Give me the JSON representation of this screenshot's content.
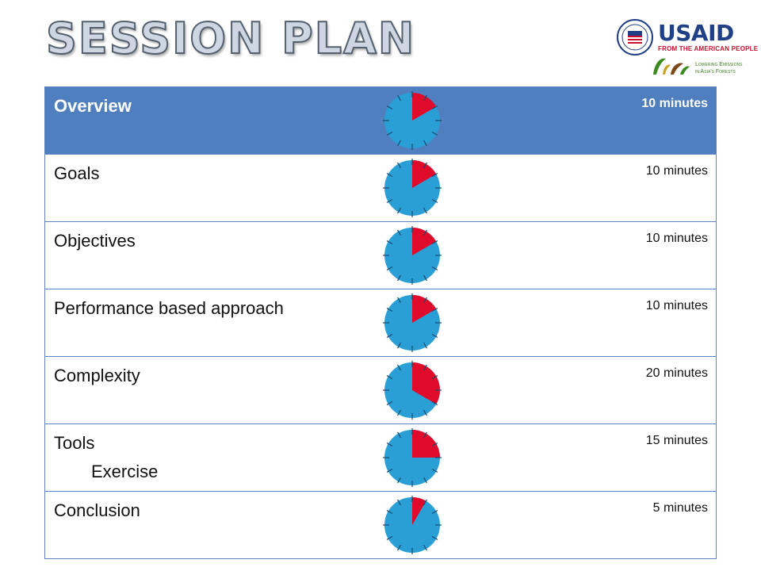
{
  "title": "SESSION PLAN",
  "logos": {
    "usaid": "USAID",
    "usaid_tagline": "FROM THE AMERICAN PEOPLE",
    "leaf_tagline_line1": "Lowering Emissions",
    "leaf_tagline_line2": "in Asia's Forests"
  },
  "colors": {
    "header_bg": "#4f7fbe",
    "clock_face": "#2a9fd6",
    "elapsed_slice": "#e00a2a",
    "border": "#5f84bf"
  },
  "table": {
    "rows": [
      {
        "label": "Overview",
        "sublabel": "",
        "duration": "10 minutes",
        "minutes": 10,
        "header": true
      },
      {
        "label": "Goals",
        "sublabel": "",
        "duration": "10 minutes",
        "minutes": 10,
        "header": false
      },
      {
        "label": "Objectives",
        "sublabel": "",
        "duration": "10 minutes",
        "minutes": 10,
        "header": false
      },
      {
        "label": "Performance  based approach",
        "sublabel": "",
        "duration": "10 minutes",
        "minutes": 10,
        "header": false
      },
      {
        "label": "Complexity",
        "sublabel": "",
        "duration": "20 minutes",
        "minutes": 20,
        "header": false
      },
      {
        "label": "Tools",
        "sublabel": "Exercise",
        "duration": "15 minutes",
        "minutes": 15,
        "header": false
      },
      {
        "label": "Conclusion",
        "sublabel": "",
        "duration": "5 minutes",
        "minutes": 5,
        "header": false
      }
    ]
  }
}
